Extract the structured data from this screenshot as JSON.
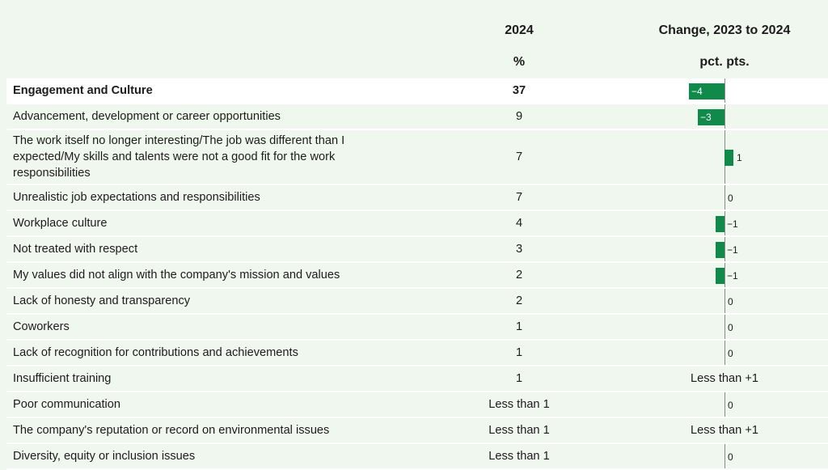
{
  "headers": {
    "col_2024": "2024",
    "col_2024_unit": "%",
    "col_change": "Change, 2023 to 2024",
    "col_change_unit": "pct. pts."
  },
  "colors": {
    "background": "#f0f7ee",
    "bar": "#0f8a4b",
    "highlight_row": "#ffffff"
  },
  "chart_data": {
    "type": "table",
    "columns": [
      "",
      "2024 (%)",
      "Change, 2023 to 2024 (pct. pts.)"
    ],
    "rows": [
      {
        "label": "Engagement and Culture",
        "pct": "37",
        "change": -4,
        "change_label": "−4",
        "highlight": true
      },
      {
        "label": "Advancement, development or career opportunities",
        "pct": "9",
        "change": -3,
        "change_label": "−3"
      },
      {
        "label": "The work itself no longer interesting/The job was different than I expected/My skills and talents were not a good fit for the work responsibilities",
        "pct": "7",
        "change": 1,
        "change_label": "1",
        "tall": true
      },
      {
        "label": "Unrealistic job expectations and responsibilities",
        "pct": "7",
        "change": 0,
        "change_label": "0"
      },
      {
        "label": "Workplace culture",
        "pct": "4",
        "change": -1,
        "change_label": "−1"
      },
      {
        "label": "Not treated with respect",
        "pct": "3",
        "change": -1,
        "change_label": "−1"
      },
      {
        "label": "My values did not align with the company's mission and values",
        "pct": "2",
        "change": -1,
        "change_label": "−1"
      },
      {
        "label": "Lack of honesty and transparency",
        "pct": "2",
        "change": 0,
        "change_label": "0"
      },
      {
        "label": "Coworkers",
        "pct": "1",
        "change": 0,
        "change_label": "0"
      },
      {
        "label": "Lack of recognition for contributions and achievements",
        "pct": "1",
        "change": 0,
        "change_label": "0"
      },
      {
        "label": "Insufficient training",
        "pct": "1",
        "change": null,
        "change_label": "Less than +1"
      },
      {
        "label": "Poor communication",
        "pct": "Less than 1",
        "change": 0,
        "change_label": "0"
      },
      {
        "label": "The company's reputation or record on environmental issues",
        "pct": "Less than 1",
        "change": null,
        "change_label": "Less than +1"
      },
      {
        "label": "Diversity, equity or inclusion issues",
        "pct": "Less than 1",
        "change": 0,
        "change_label": "0"
      }
    ]
  }
}
